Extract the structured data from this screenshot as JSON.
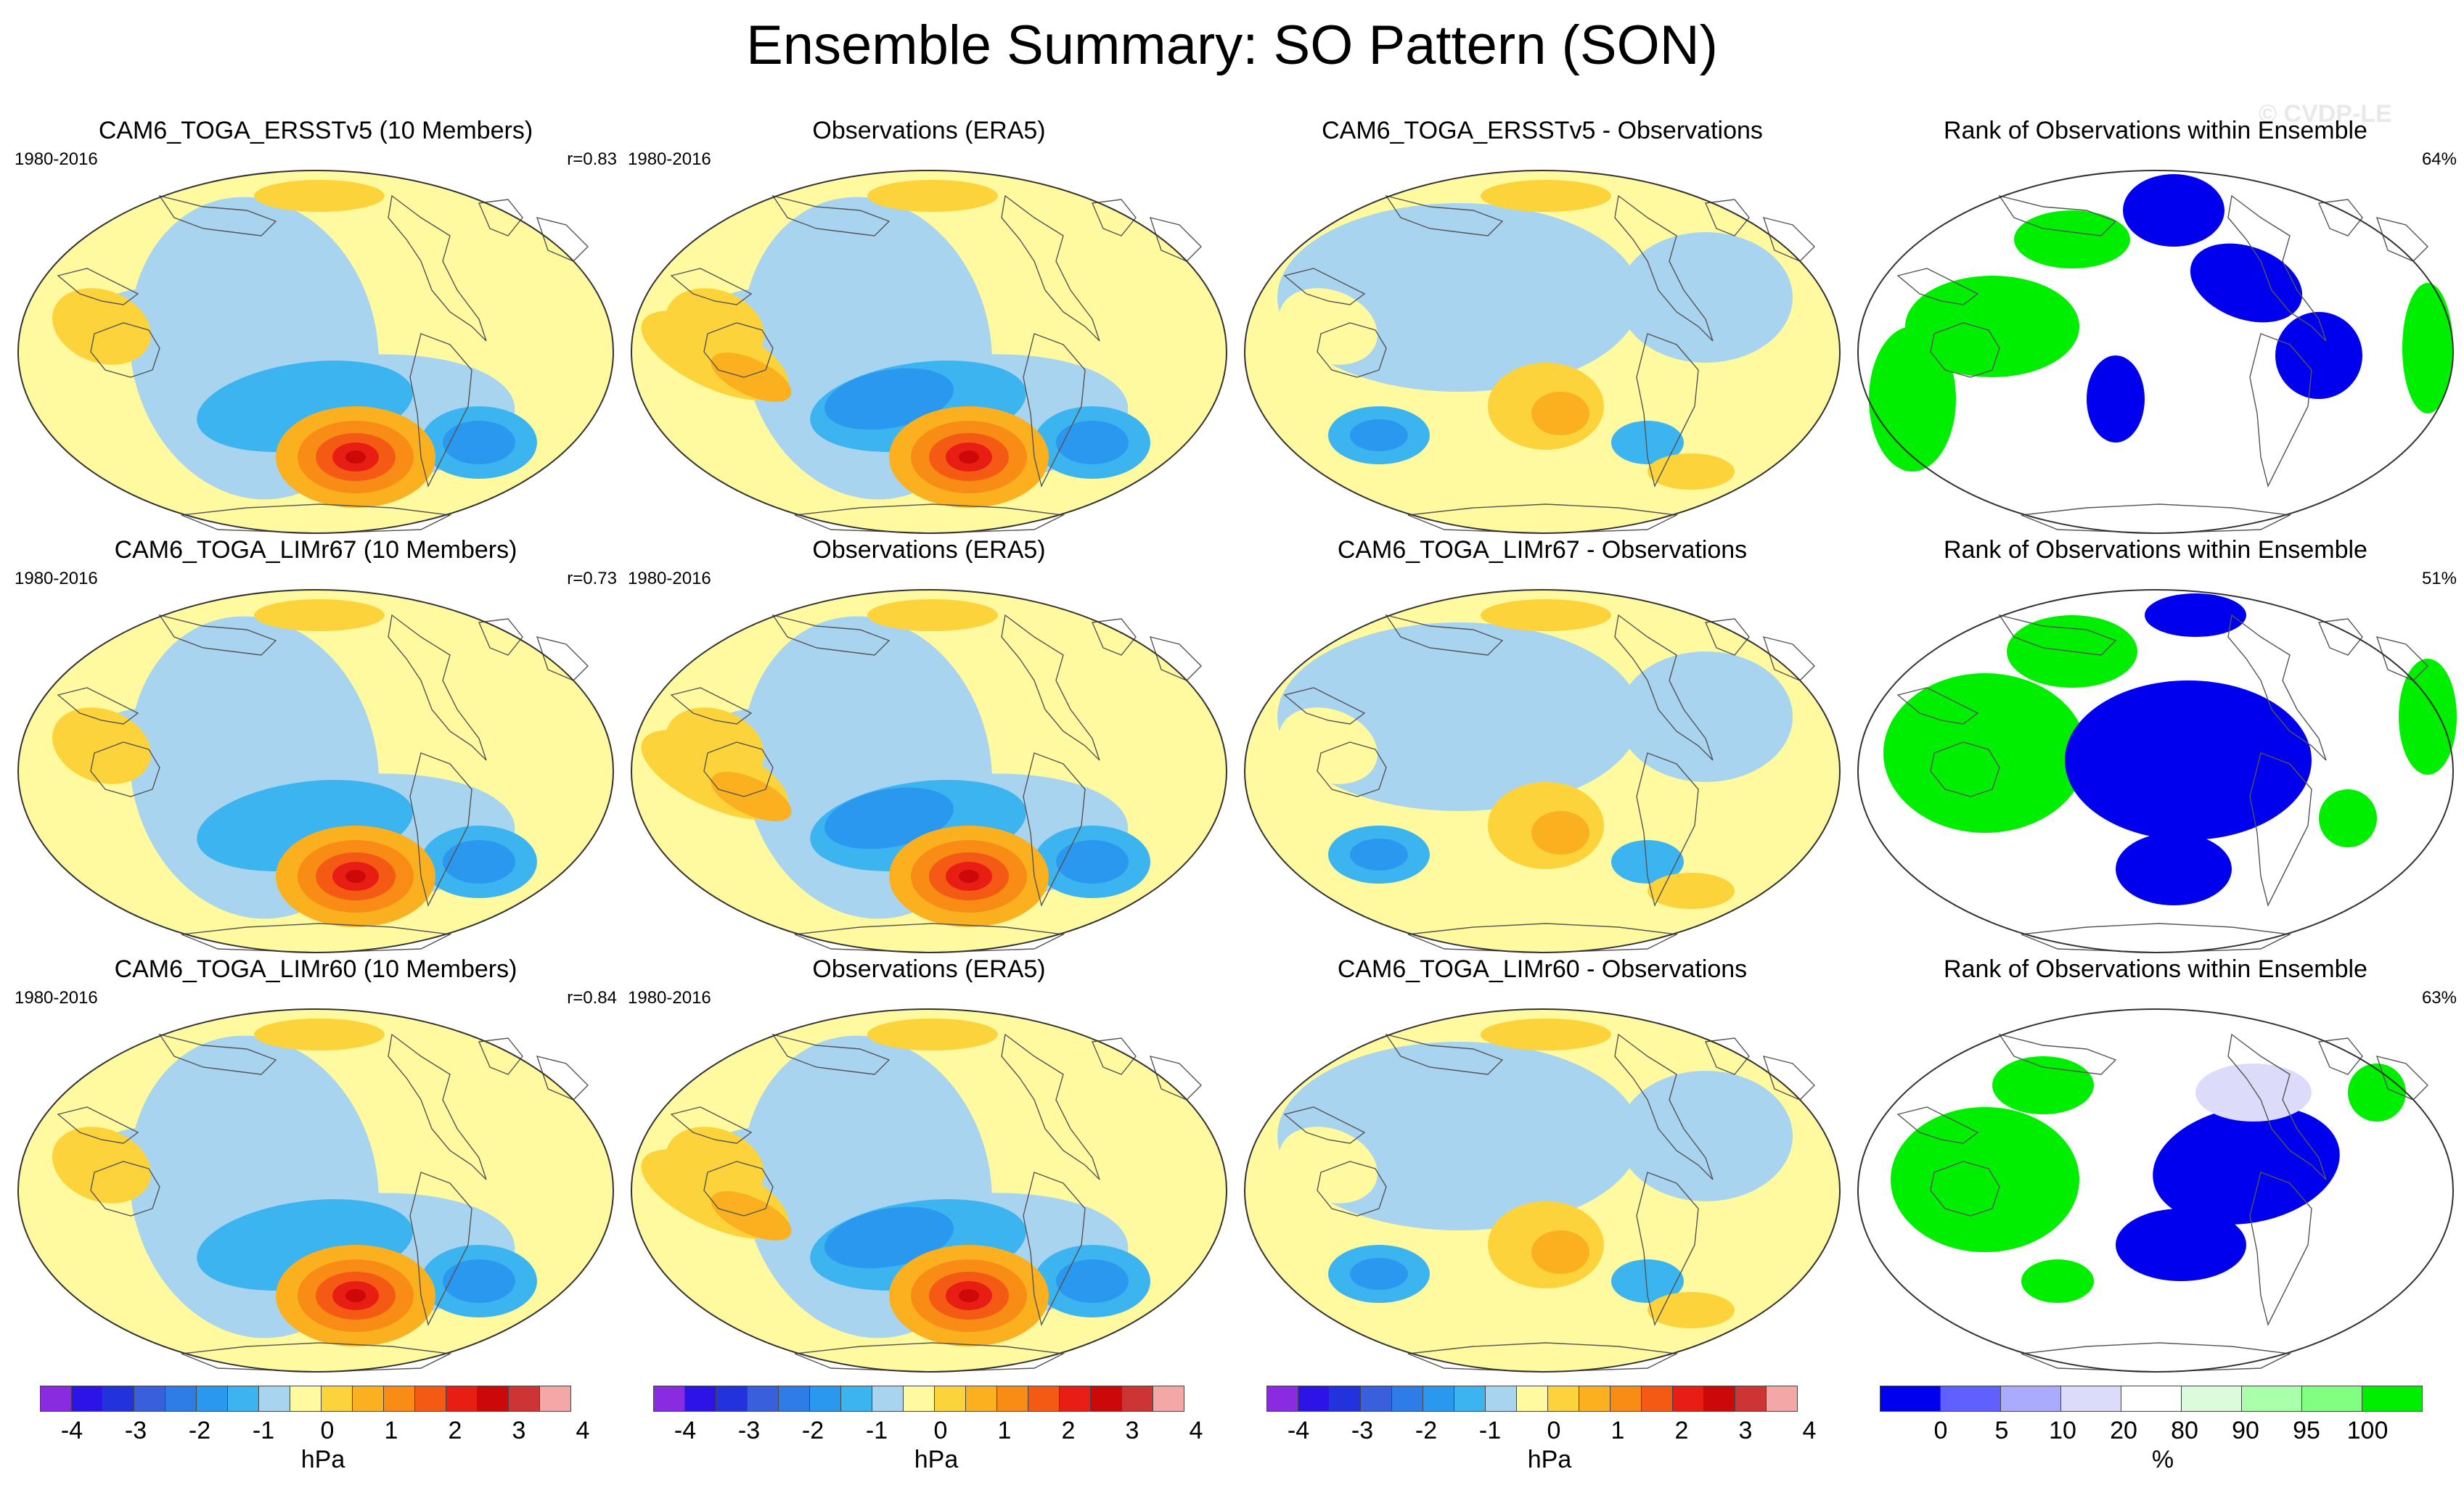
{
  "title": "Ensemble Summary: SO Pattern (SON)",
  "watermark": "© CVDP-LE",
  "rows": [
    {
      "model": {
        "title": "CAM6_TOGA_ERSSTv5 (10 Members)",
        "period": "1980-2016",
        "stat": "r=0.83"
      },
      "obs": {
        "title": "Observations (ERA5)",
        "period": "1980-2016",
        "stat": ""
      },
      "diff": {
        "title": "CAM6_TOGA_ERSSTv5 - Observations",
        "period": "",
        "stat": ""
      },
      "rank": {
        "title": "Rank of Observations within Ensemble",
        "period": "",
        "stat": "64%"
      }
    },
    {
      "model": {
        "title": "CAM6_TOGA_LIMr67 (10 Members)",
        "period": "1980-2016",
        "stat": "r=0.73"
      },
      "obs": {
        "title": "Observations (ERA5)",
        "period": "1980-2016",
        "stat": ""
      },
      "diff": {
        "title": "CAM6_TOGA_LIMr67 - Observations",
        "period": "",
        "stat": ""
      },
      "rank": {
        "title": "Rank of Observations within Ensemble",
        "period": "",
        "stat": "51%"
      }
    },
    {
      "model": {
        "title": "CAM6_TOGA_LIMr60 (10 Members)",
        "period": "1980-2016",
        "stat": "r=0.84"
      },
      "obs": {
        "title": "Observations (ERA5)",
        "period": "1980-2016",
        "stat": ""
      },
      "diff": {
        "title": "CAM6_TOGA_LIMr60 - Observations",
        "period": "",
        "stat": ""
      },
      "rank": {
        "title": "Rank of Observations within Ensemble",
        "period": "",
        "stat": "63%"
      }
    }
  ],
  "colorbars": [
    {
      "colors": [
        "#8a2be2",
        "#2d14e6",
        "#2233dd",
        "#3a5fdc",
        "#2e7de6",
        "#2b98f0",
        "#3cb4f0",
        "#a8d4ef",
        "#fffaa0",
        "#fdd33c",
        "#fbb01f",
        "#f88c14",
        "#f45a14",
        "#e81e14",
        "#cc0808",
        "#cd3535",
        "#f4a7a7"
      ],
      "ticks": [
        "-4",
        "-3",
        "-2",
        "-1",
        "0",
        "1",
        "2",
        "3",
        "4"
      ],
      "label": "hPa"
    },
    {
      "colors": [
        "#8a2be2",
        "#2d14e6",
        "#2233dd",
        "#3a5fdc",
        "#2e7de6",
        "#2b98f0",
        "#3cb4f0",
        "#a8d4ef",
        "#fffaa0",
        "#fdd33c",
        "#fbb01f",
        "#f88c14",
        "#f45a14",
        "#e81e14",
        "#cc0808",
        "#cd3535",
        "#f4a7a7"
      ],
      "ticks": [
        "-4",
        "-3",
        "-2",
        "-1",
        "0",
        "1",
        "2",
        "3",
        "4"
      ],
      "label": "hPa"
    },
    {
      "colors": [
        "#8a2be2",
        "#2d14e6",
        "#2233dd",
        "#3a5fdc",
        "#2e7de6",
        "#2b98f0",
        "#3cb4f0",
        "#a8d4ef",
        "#fffaa0",
        "#fdd33c",
        "#fbb01f",
        "#f88c14",
        "#f45a14",
        "#e81e14",
        "#cc0808",
        "#cd3535",
        "#f4a7a7"
      ],
      "ticks": [
        "-4",
        "-3",
        "-2",
        "-1",
        "0",
        "1",
        "2",
        "3",
        "4"
      ],
      "label": "hPa"
    },
    {
      "colors": [
        "#0000ee",
        "#6060ff",
        "#aaaaff",
        "#dcdcfa",
        "#ffffff",
        "#dcfadc",
        "#aaffaa",
        "#80ff80",
        "#00ee00"
      ],
      "ticks": [
        "0",
        "5",
        "10",
        "20",
        "80",
        "90",
        "95",
        "100"
      ],
      "label": "%"
    }
  ]
}
